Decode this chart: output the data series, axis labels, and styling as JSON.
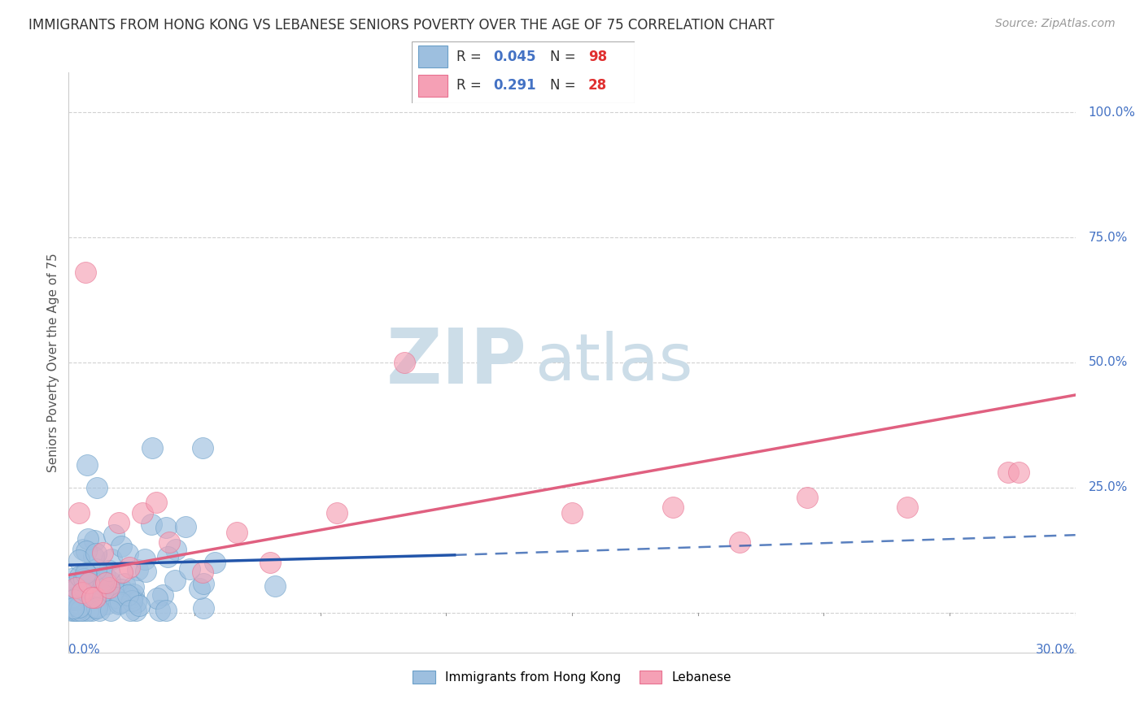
{
  "title": "IMMIGRANTS FROM HONG KONG VS LEBANESE SENIORS POVERTY OVER THE AGE OF 75 CORRELATION CHART",
  "source": "Source: ZipAtlas.com",
  "ylabel": "Seniors Poverty Over the Age of 75",
  "xlim": [
    0.0,
    0.3
  ],
  "ylim": [
    -0.08,
    1.08
  ],
  "hk_R": 0.045,
  "hk_N": 98,
  "lb_R": 0.291,
  "lb_N": 28,
  "hk_color": "#9dbfdf",
  "lb_color": "#f5a0b5",
  "hk_edge_color": "#6a9fc8",
  "lb_edge_color": "#e87090",
  "hk_line_color": "#2255aa",
  "lb_line_color": "#e06080",
  "watermark_color": "#ccdde8",
  "legend_label_hk": "Immigrants from Hong Kong",
  "legend_label_lb": "Lebanese",
  "grid_color": "#cccccc",
  "ytick_vals": [
    0.0,
    0.25,
    0.5,
    0.75,
    1.0
  ],
  "ytick_labels": [
    "",
    "25.0%",
    "50.0%",
    "75.0%",
    "100.0%"
  ],
  "hk_trend_x0": 0.0,
  "hk_trend_y0": 0.095,
  "hk_trend_x1_solid": 0.115,
  "hk_trend_y1_solid": 0.115,
  "hk_trend_x1_dash": 0.3,
  "hk_trend_y1_dash": 0.155,
  "lb_trend_x0": 0.0,
  "lb_trend_y0": 0.075,
  "lb_trend_x1": 0.3,
  "lb_trend_y1": 0.435
}
